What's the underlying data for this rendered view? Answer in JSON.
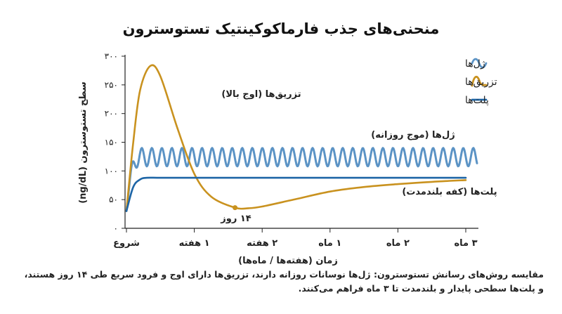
{
  "chart_data": {
    "type": "line",
    "title": "منحنی‌های جذب فارماکوکینتیک تستوسترون",
    "ylabel": "سطح تستوسترون (ng/dL)",
    "xlabel": "زمان (هفته‌ها / ماه‌ها)",
    "ylim": [
      0,
      300
    ],
    "yticks": [
      {
        "value": 0,
        "label": "۰"
      },
      {
        "value": 50,
        "label": "۵۰"
      },
      {
        "value": 100,
        "label": "۱۰۰"
      },
      {
        "value": 150,
        "label": "۱۵۰"
      },
      {
        "value": 200,
        "label": "۲۰۰"
      },
      {
        "value": 250,
        "label": "۲۵۰"
      },
      {
        "value": 300,
        "label": "۳۰۰"
      }
    ],
    "xticks": [
      "شروع",
      "۱ هفته",
      "۲ هفته",
      "۱ ماه",
      "۲ ماه",
      "۳ ماه"
    ],
    "legend_position": "top-right",
    "series": [
      {
        "name": "ژل‌ها",
        "color": "#5b93c5",
        "shape": "oscillating",
        "x": [
          0,
          0.1,
          0.2,
          0.3,
          0.5,
          1,
          2,
          3,
          4,
          5
        ],
        "y": [
          30,
          85,
          120,
          128,
          115,
          128,
          112,
          128,
          112,
          122
        ],
        "oscillation_range": [
          108,
          140
        ]
      },
      {
        "name": "تزریق‌ها",
        "color": "#c9921f",
        "x": [
          0,
          0.1,
          0.2,
          0.35,
          0.5,
          0.75,
          1,
          1.25,
          1.6,
          1.8,
          2,
          2.5,
          3,
          3.5,
          4,
          4.5,
          5
        ],
        "y": [
          30,
          150,
          240,
          283,
          265,
          175,
          95,
          55,
          36,
          35,
          38,
          51,
          64,
          72,
          77,
          81,
          84
        ]
      },
      {
        "name": "پلت‌ها",
        "color": "#1d65a6",
        "x": [
          0,
          0.1,
          0.2,
          0.3,
          0.5,
          1,
          2,
          3,
          4,
          5
        ],
        "y": [
          30,
          72,
          85,
          88,
          88,
          88,
          88,
          88,
          88,
          88
        ]
      }
    ],
    "annotations": [
      {
        "text": "تزریق‌ها (اوج بالا)",
        "series": "تزریق‌ها"
      },
      {
        "text": "ژل‌ها (موج روزانه)",
        "series": "ژل‌ها"
      },
      {
        "text": "پلت‌ها (کفه بلندمدت)",
        "series": "پلت‌ها"
      },
      {
        "text": "۱۴ روز",
        "series": "تزریق‌ها",
        "x": 1.6,
        "y": 36
      }
    ]
  },
  "caption": "مقایسه روش‌های رسانش تستوسترون: ژل‌ها نوسانات روزانه دارند، تزریق‌ها دارای اوج و فرود سریع طی ۱۴ روز هستند، و پلت‌ها سطحی پایدار و بلندمدت تا ۳ ماه فراهم می‌کنند."
}
